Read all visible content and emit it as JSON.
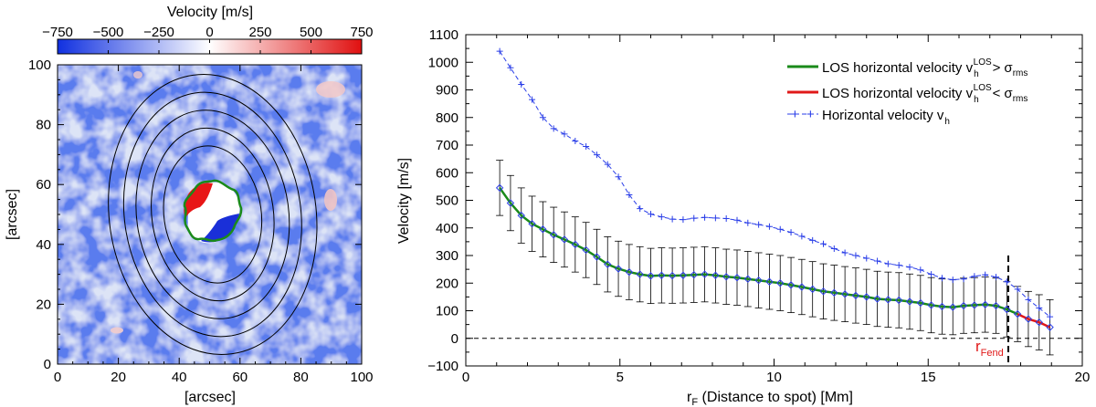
{
  "chart_data": [
    {
      "type": "heatmap",
      "colorbar": {
        "title": "Velocity [m/s]",
        "range": [
          -750,
          750
        ],
        "ticks": [
          "−750",
          "−500",
          "−250",
          "0",
          "250",
          "500",
          "750"
        ],
        "colors": {
          "low": "#1030e0",
          "mid": "#ffffff",
          "high": "#e01010"
        }
      },
      "xlabel": "[arcsec]",
      "ylabel": "[arcsec]",
      "xlim": [
        0,
        100
      ],
      "ylim": [
        0,
        100
      ],
      "xticks": [
        "0",
        "20",
        "40",
        "60",
        "80",
        "100"
      ],
      "yticks": [
        "0",
        "20",
        "40",
        "60",
        "80",
        "100"
      ],
      "spot_center": [
        51,
        50
      ],
      "contour_radii": [
        [
          16,
          23
        ],
        [
          20,
          29
        ],
        [
          25,
          35
        ],
        [
          29,
          41
        ],
        [
          34,
          47
        ]
      ]
    },
    {
      "type": "line",
      "xlabel_main": "r",
      "xlabel_sub": "F",
      "xlabel_rest": " (Distance to spot) [Mm]",
      "ylabel": "Velocity [m/s]",
      "xlim": [
        0,
        20
      ],
      "ylim": [
        -100,
        1100
      ],
      "xticks": [
        "0",
        "5",
        "10",
        "15",
        "20"
      ],
      "yticks": [
        "−100",
        "0",
        "100",
        "200",
        "300",
        "400",
        "500",
        "600",
        "700",
        "800",
        "900",
        "1000",
        "1100"
      ],
      "legend": [
        {
          "text": "LOS horizontal velocity v",
          "sub": "h",
          "sup": "LOS",
          "rel": ">",
          "sigma": "σ",
          "sigma_sub": "rms",
          "color": "#1a8a1a"
        },
        {
          "text": "LOS horizontal velocity v",
          "sub": "h",
          "sup": "LOS",
          "rel": "<",
          "sigma": "σ",
          "sigma_sub": "rms",
          "color": "#e01818"
        },
        {
          "text": "Horizontal velocity v",
          "sub": "h",
          "color": "#2a3ee8"
        }
      ],
      "rfend_label": "r",
      "rfend_sub": "Fend",
      "rfend_x": 17.6,
      "series": [
        {
          "name": "LOS horizontal velocity",
          "x": [
            1.1,
            1.45,
            1.8,
            2.15,
            2.5,
            2.85,
            3.2,
            3.55,
            3.9,
            4.25,
            4.6,
            4.95,
            5.3,
            5.65,
            6.0,
            6.35,
            6.7,
            7.05,
            7.4,
            7.75,
            8.1,
            8.45,
            8.8,
            9.15,
            9.5,
            9.85,
            10.2,
            10.55,
            10.9,
            11.25,
            11.6,
            11.95,
            12.3,
            12.65,
            13.0,
            13.35,
            13.7,
            14.05,
            14.4,
            14.75,
            15.1,
            15.45,
            15.8,
            16.15,
            16.5,
            16.85,
            17.2,
            17.55,
            17.9,
            18.25,
            18.6,
            18.95
          ],
          "y": [
            545,
            490,
            445,
            415,
            395,
            375,
            358,
            340,
            320,
            295,
            268,
            252,
            240,
            232,
            226,
            228,
            227,
            228,
            230,
            232,
            228,
            223,
            220,
            215,
            210,
            205,
            200,
            193,
            186,
            178,
            170,
            165,
            160,
            155,
            150,
            143,
            140,
            138,
            133,
            128,
            120,
            115,
            113,
            118,
            120,
            122,
            118,
            105,
            88,
            70,
            58,
            40
          ],
          "err": [
            100,
            100,
            100,
            100,
            100,
            100,
            100,
            100,
            100,
            100,
            100,
            100,
            100,
            100,
            100,
            100,
            100,
            100,
            100,
            100,
            100,
            100,
            100,
            100,
            100,
            100,
            100,
            100,
            100,
            100,
            100,
            100,
            100,
            100,
            100,
            100,
            100,
            100,
            100,
            100,
            100,
            100,
            100,
            100,
            100,
            100,
            100,
            100,
            100,
            100,
            100,
            100
          ]
        },
        {
          "name": "Horizontal velocity",
          "x": [
            1.1,
            1.45,
            1.8,
            2.15,
            2.5,
            2.85,
            3.2,
            3.55,
            3.9,
            4.25,
            4.6,
            4.95,
            5.3,
            5.65,
            6.0,
            6.35,
            6.7,
            7.05,
            7.4,
            7.75,
            8.1,
            8.45,
            8.8,
            9.15,
            9.5,
            9.85,
            10.2,
            10.55,
            10.9,
            11.25,
            11.6,
            11.95,
            12.3,
            12.65,
            13.0,
            13.35,
            13.7,
            14.05,
            14.4,
            14.75,
            15.1,
            15.45,
            15.8,
            16.15,
            16.5,
            16.85,
            17.2,
            17.55,
            17.9,
            18.25,
            18.6,
            18.95
          ],
          "y": [
            1040,
            980,
            920,
            865,
            800,
            760,
            740,
            715,
            695,
            665,
            630,
            585,
            520,
            470,
            450,
            440,
            432,
            430,
            435,
            438,
            436,
            434,
            428,
            418,
            412,
            405,
            395,
            384,
            370,
            355,
            342,
            325,
            310,
            300,
            290,
            280,
            270,
            265,
            258,
            248,
            232,
            218,
            212,
            215,
            225,
            230,
            222,
            205,
            178,
            140,
            110,
            78
          ]
        }
      ]
    }
  ]
}
